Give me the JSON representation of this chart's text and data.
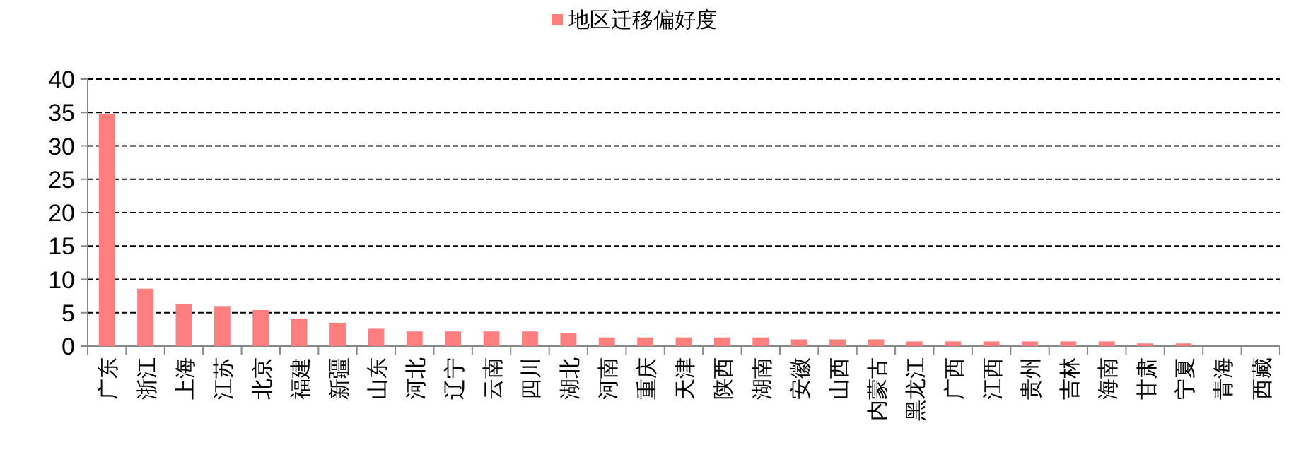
{
  "chart_data": {
    "type": "bar",
    "categories": [
      "广东",
      "浙江",
      "上海",
      "江苏",
      "北京",
      "福建",
      "新疆",
      "山东",
      "河北",
      "辽宁",
      "云南",
      "四川",
      "湖北",
      "河南",
      "重庆",
      "天津",
      "陕西",
      "湖南",
      "安徽",
      "山西",
      "内蒙古",
      "黑龙江",
      "广西",
      "江西",
      "贵州",
      "吉林",
      "海南",
      "甘肃",
      "宁夏",
      "青海",
      "西藏"
    ],
    "series": [
      {
        "name": "地区迁移偏好度",
        "color": "#ff7f7f",
        "values": [
          34.8,
          8.6,
          6.3,
          6.0,
          5.4,
          4.1,
          3.5,
          2.6,
          2.2,
          2.2,
          2.2,
          2.2,
          1.9,
          1.3,
          1.3,
          1.3,
          1.3,
          1.3,
          1.0,
          1.0,
          1.0,
          0.7,
          0.7,
          0.7,
          0.7,
          0.7,
          0.7,
          0.4,
          0.4,
          0,
          0
        ]
      }
    ],
    "ylim": [
      0,
      40
    ],
    "yticks": [
      0,
      5,
      10,
      15,
      20,
      25,
      30,
      35,
      40
    ],
    "grid": "y",
    "legend": "top"
  }
}
